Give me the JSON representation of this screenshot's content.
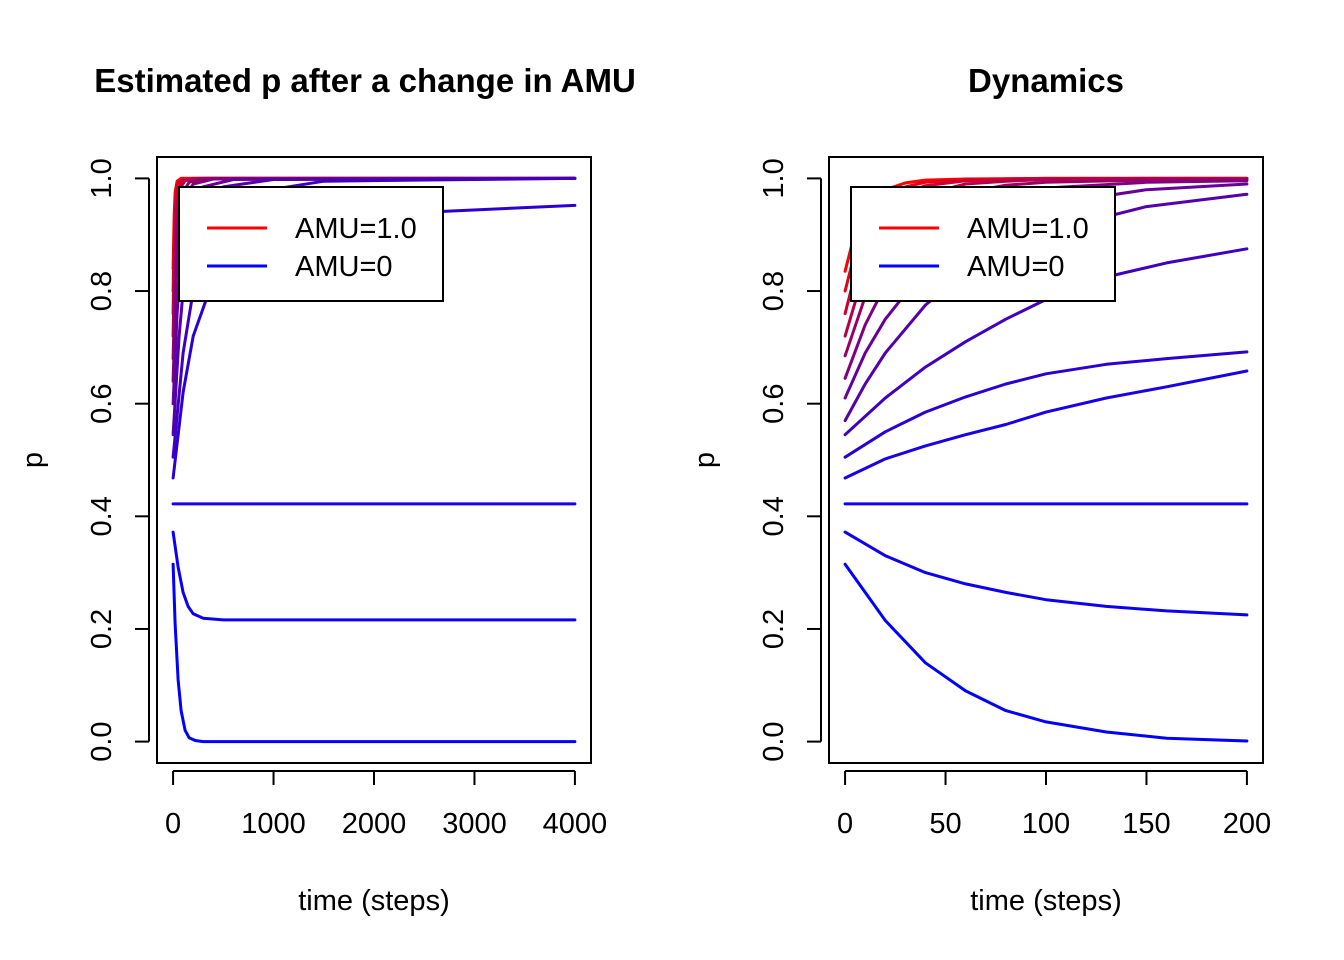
{
  "chart_data": [
    {
      "type": "line",
      "title": "Estimated p after a change in AMU",
      "xlabel": "time (steps)",
      "ylabel": "p",
      "xlim": [
        0,
        4000
      ],
      "ylim": [
        0,
        1
      ],
      "xticks": [
        0,
        1000,
        2000,
        3000,
        4000
      ],
      "xtick_labels": [
        "0",
        "1000",
        "2000",
        "3000",
        "4000"
      ],
      "yticks": [
        0,
        0.2,
        0.4,
        0.6,
        0.8,
        1
      ],
      "ytick_labels": [
        "0.0",
        "0.2",
        "0.4",
        "0.6",
        "0.8",
        "1.0"
      ],
      "grid": false,
      "legend": {
        "position": "top-left",
        "entries": [
          {
            "label": "AMU=1.0",
            "color": "#ff0000"
          },
          {
            "label": "AMU=0",
            "color": "#0000ff"
          }
        ]
      },
      "series": [
        {
          "color": "#ff0000",
          "x": [
            0,
            10,
            20,
            40,
            80,
            150,
            4000
          ],
          "y": [
            0.84,
            0.93,
            0.975,
            0.995,
            1.0,
            1.0,
            1.0
          ]
        },
        {
          "color": "#e6001a",
          "x": [
            0,
            10,
            20,
            40,
            80,
            150,
            4000
          ],
          "y": [
            0.8,
            0.9,
            0.96,
            0.99,
            1.0,
            1.0,
            1.0
          ]
        },
        {
          "color": "#cc0033",
          "x": [
            0,
            10,
            25,
            50,
            100,
            200,
            4000
          ],
          "y": [
            0.76,
            0.87,
            0.95,
            0.985,
            0.998,
            1.0,
            1.0
          ]
        },
        {
          "color": "#b3004d",
          "x": [
            0,
            15,
            30,
            60,
            120,
            250,
            4000
          ],
          "y": [
            0.72,
            0.85,
            0.93,
            0.98,
            0.996,
            1.0,
            1.0
          ]
        },
        {
          "color": "#990066",
          "x": [
            0,
            20,
            40,
            80,
            160,
            300,
            4000
          ],
          "y": [
            0.68,
            0.82,
            0.91,
            0.97,
            0.993,
            1.0,
            1.0
          ]
        },
        {
          "color": "#800080",
          "x": [
            0,
            25,
            50,
            100,
            200,
            400,
            4000
          ],
          "y": [
            0.64,
            0.79,
            0.89,
            0.96,
            0.99,
            0.999,
            1.0
          ]
        },
        {
          "color": "#660099",
          "x": [
            0,
            40,
            80,
            160,
            300,
            600,
            4000
          ],
          "y": [
            0.6,
            0.76,
            0.87,
            0.95,
            0.985,
            0.998,
            1.0
          ]
        },
        {
          "color": "#5400ab",
          "x": [
            0,
            60,
            120,
            250,
            500,
            1000,
            4000
          ],
          "y": [
            0.545,
            0.72,
            0.84,
            0.94,
            0.985,
            0.998,
            1.0
          ]
        },
        {
          "color": "#4000bf",
          "x": [
            0,
            100,
            200,
            400,
            800,
            1500,
            4000
          ],
          "y": [
            0.505,
            0.69,
            0.8,
            0.91,
            0.975,
            0.995,
            1.0
          ]
        },
        {
          "color": "#2d00d2",
          "x": [
            0,
            100,
            200,
            400,
            800,
            1500,
            2500,
            4000
          ],
          "y": [
            0.468,
            0.62,
            0.72,
            0.82,
            0.89,
            0.925,
            0.94,
            0.952
          ]
        },
        {
          "color": "#1a00e5",
          "x": [
            0,
            4000
          ],
          "y": [
            0.422,
            0.422
          ]
        },
        {
          "color": "#0d00f2",
          "x": [
            0,
            50,
            100,
            150,
            200,
            300,
            500,
            4000
          ],
          "y": [
            0.372,
            0.31,
            0.265,
            0.24,
            0.227,
            0.219,
            0.216,
            0.216
          ]
        },
        {
          "color": "#0000ff",
          "x": [
            0,
            20,
            50,
            80,
            120,
            160,
            220,
            300,
            4000
          ],
          "y": [
            0.315,
            0.21,
            0.11,
            0.055,
            0.02,
            0.007,
            0.002,
            0.0,
            0.0
          ]
        }
      ]
    },
    {
      "type": "line",
      "title": "Dynamics",
      "xlabel": "time (steps)",
      "ylabel": "p",
      "xlim": [
        0,
        200
      ],
      "ylim": [
        0,
        1
      ],
      "xticks": [
        0,
        50,
        100,
        150,
        200
      ],
      "xtick_labels": [
        "0",
        "50",
        "100",
        "150",
        "200"
      ],
      "yticks": [
        0,
        0.2,
        0.4,
        0.6,
        0.8,
        1
      ],
      "ytick_labels": [
        "0.0",
        "0.2",
        "0.4",
        "0.6",
        "0.8",
        "1.0"
      ],
      "grid": false,
      "legend": {
        "position": "top-left",
        "entries": [
          {
            "label": "AMU=1.0",
            "color": "#ff0000"
          },
          {
            "label": "AMU=0",
            "color": "#0000ff"
          }
        ]
      },
      "series": [
        {
          "color": "#ff0000",
          "x": [
            0,
            5,
            10,
            20,
            30,
            40,
            60,
            100,
            150,
            200
          ],
          "y": [
            0.835,
            0.905,
            0.945,
            0.98,
            0.992,
            0.997,
            0.999,
            1.0,
            1.0,
            1.0
          ]
        },
        {
          "color": "#e6001a",
          "x": [
            0,
            5,
            10,
            20,
            30,
            40,
            60,
            100,
            150,
            200
          ],
          "y": [
            0.8,
            0.87,
            0.92,
            0.965,
            0.985,
            0.993,
            0.998,
            1.0,
            1.0,
            1.0
          ]
        },
        {
          "color": "#cc0033",
          "x": [
            0,
            5,
            10,
            20,
            30,
            40,
            60,
            100,
            150,
            200
          ],
          "y": [
            0.76,
            0.83,
            0.89,
            0.95,
            0.975,
            0.987,
            0.996,
            0.999,
            1.0,
            1.0
          ]
        },
        {
          "color": "#b3004d",
          "x": [
            0,
            10,
            20,
            30,
            40,
            60,
            80,
            100,
            150,
            200
          ],
          "y": [
            0.72,
            0.84,
            0.91,
            0.95,
            0.972,
            0.99,
            0.995,
            0.998,
            0.999,
            0.999
          ]
        },
        {
          "color": "#990066",
          "x": [
            0,
            10,
            20,
            30,
            40,
            60,
            80,
            100,
            150,
            200
          ],
          "y": [
            0.685,
            0.79,
            0.86,
            0.915,
            0.945,
            0.975,
            0.988,
            0.993,
            0.997,
            0.998
          ]
        },
        {
          "color": "#800080",
          "x": [
            0,
            10,
            20,
            30,
            40,
            60,
            80,
            100,
            150,
            200
          ],
          "y": [
            0.645,
            0.74,
            0.81,
            0.865,
            0.905,
            0.95,
            0.972,
            0.983,
            0.993,
            0.996
          ]
        },
        {
          "color": "#660099",
          "x": [
            0,
            10,
            20,
            40,
            60,
            80,
            100,
            150,
            200
          ],
          "y": [
            0.61,
            0.69,
            0.75,
            0.84,
            0.895,
            0.93,
            0.953,
            0.98,
            0.99
          ]
        },
        {
          "color": "#5400ab",
          "x": [
            0,
            10,
            20,
            40,
            60,
            80,
            100,
            150,
            200
          ],
          "y": [
            0.57,
            0.635,
            0.69,
            0.775,
            0.835,
            0.875,
            0.905,
            0.95,
            0.972
          ]
        },
        {
          "color": "#4000bf",
          "x": [
            0,
            20,
            40,
            60,
            80,
            100,
            130,
            160,
            200
          ],
          "y": [
            0.545,
            0.61,
            0.665,
            0.71,
            0.75,
            0.785,
            0.825,
            0.85,
            0.875
          ]
        },
        {
          "color": "#2d00d2",
          "x": [
            0,
            20,
            40,
            60,
            80,
            100,
            130,
            160,
            200
          ],
          "y": [
            0.505,
            0.55,
            0.585,
            0.612,
            0.635,
            0.653,
            0.67,
            0.68,
            0.692
          ]
        },
        {
          "color": "#1a00e5",
          "x": [
            0,
            20,
            40,
            60,
            80,
            100,
            130,
            160,
            200
          ],
          "y": [
            0.468,
            0.502,
            0.525,
            0.545,
            0.563,
            0.585,
            0.61,
            0.63,
            0.658
          ]
        },
        {
          "color": "#1400eb",
          "x": [
            0,
            200
          ],
          "y": [
            0.422,
            0.422
          ]
        },
        {
          "color": "#0d00f2",
          "x": [
            0,
            20,
            40,
            60,
            80,
            100,
            130,
            160,
            200
          ],
          "y": [
            0.372,
            0.33,
            0.3,
            0.28,
            0.265,
            0.252,
            0.24,
            0.232,
            0.225
          ]
        },
        {
          "color": "#0000ff",
          "x": [
            0,
            20,
            40,
            60,
            80,
            100,
            130,
            160,
            200
          ],
          "y": [
            0.315,
            0.215,
            0.14,
            0.09,
            0.055,
            0.035,
            0.017,
            0.006,
            0.001
          ]
        }
      ]
    }
  ]
}
